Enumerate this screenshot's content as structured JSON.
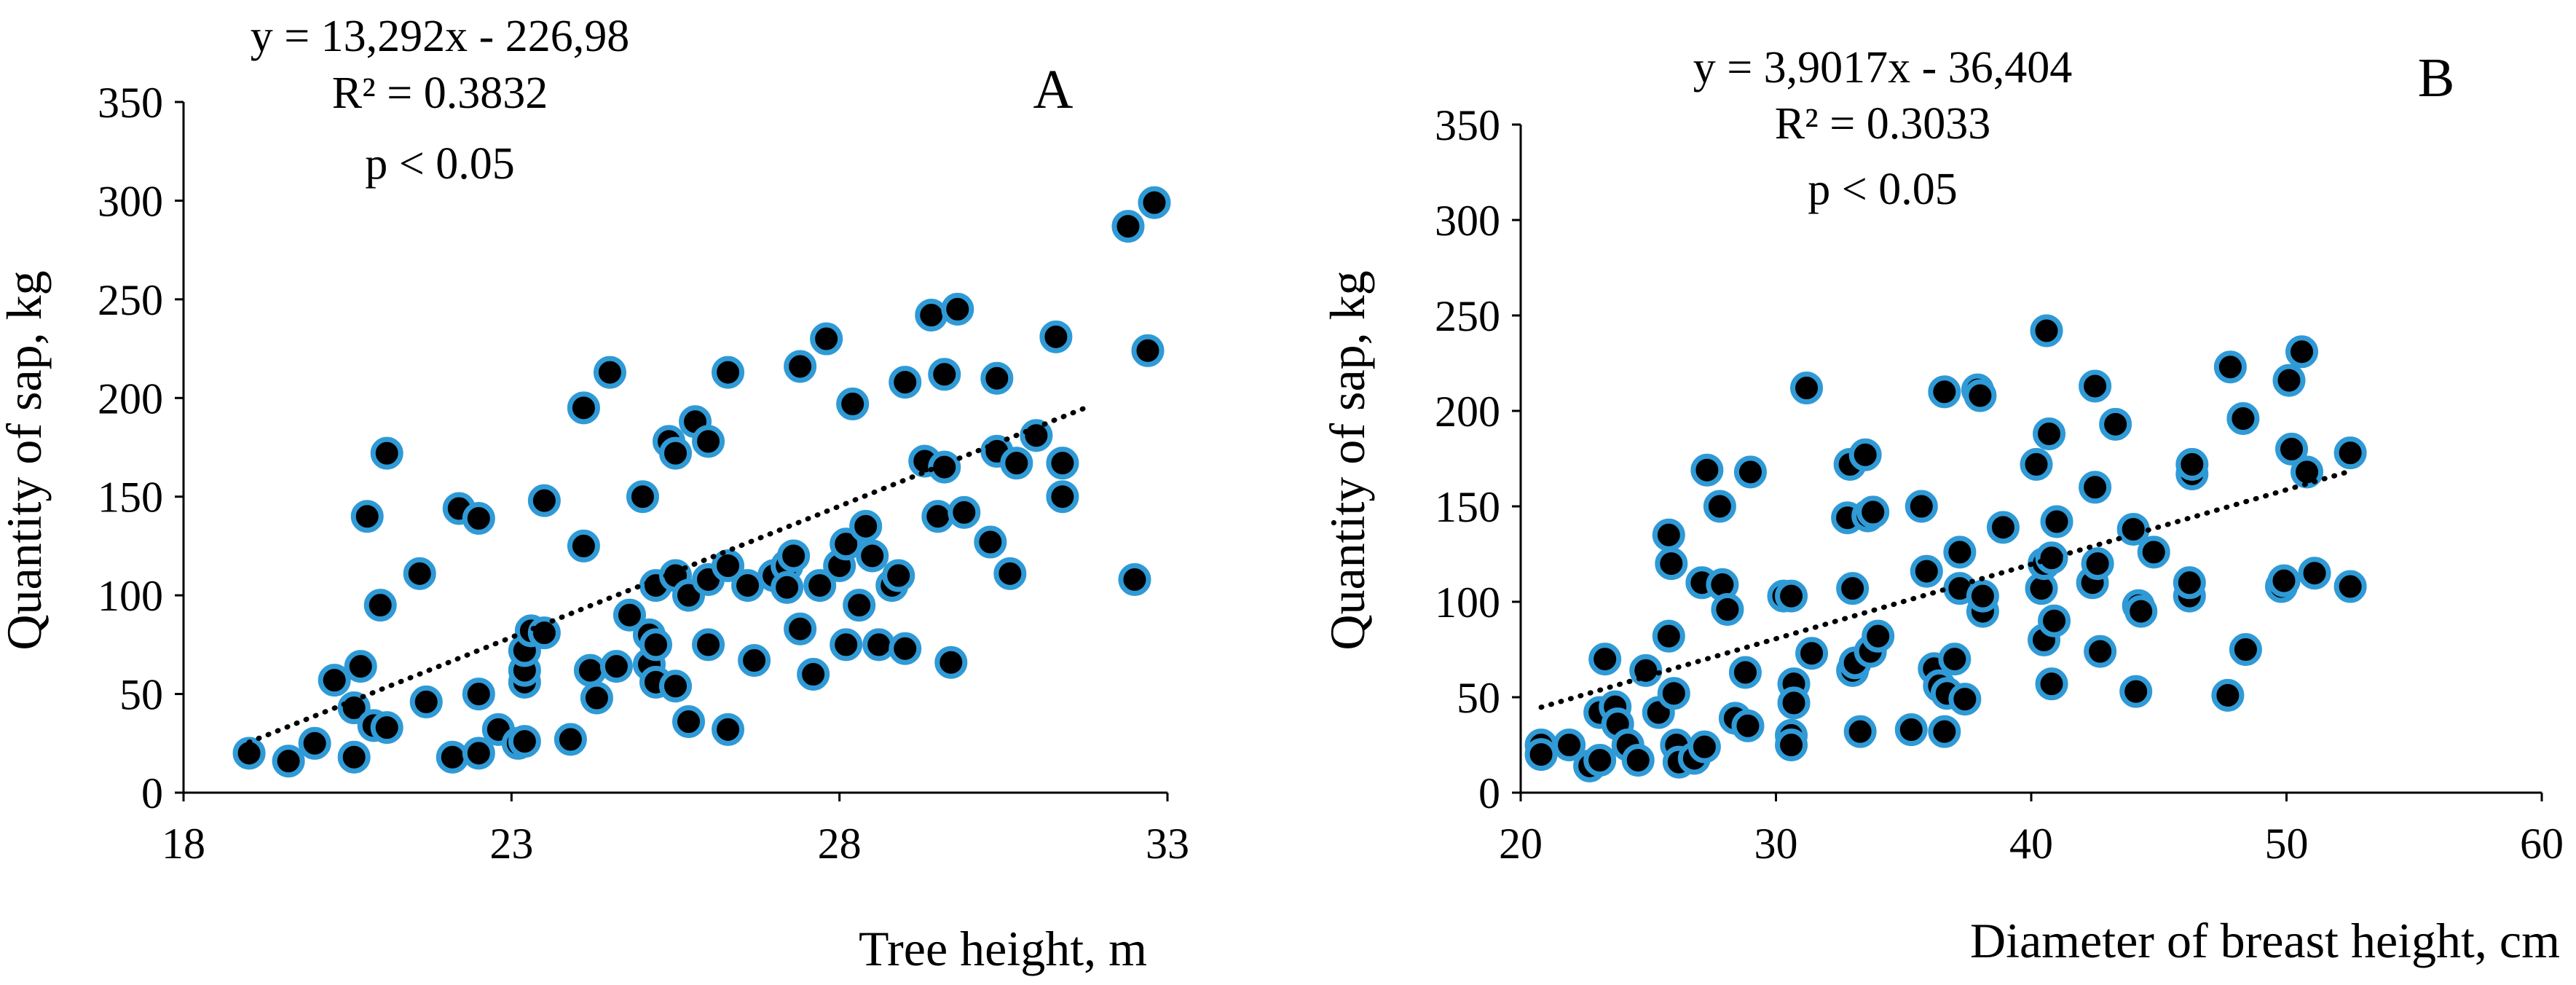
{
  "chart_data": [
    {
      "type": "scatter",
      "panel_label": "A",
      "xlabel": "Tree height, m",
      "ylabel": "Quantity of sap, kg",
      "xlim": [
        18,
        33
      ],
      "ylim": [
        0,
        350
      ],
      "xticks": [
        "18",
        "23",
        "28",
        "33"
      ],
      "yticks": [
        "0",
        "50",
        "100",
        "150",
        "200",
        "250",
        "300",
        "350"
      ],
      "annotation": {
        "equation": "y = 13,292x - 226,98",
        "r2": "R² = 0.3832",
        "p": "p < 0.05"
      },
      "trendline": {
        "slope": 13.292,
        "intercept": -226.98,
        "x_range": [
          19.0,
          31.8
        ]
      },
      "marker_colors": {
        "fill": "#000000",
        "edge": "#2f9ad6"
      },
      "points": [
        [
          19.0,
          20
        ],
        [
          19.6,
          16
        ],
        [
          20.0,
          25
        ],
        [
          20.3,
          57
        ],
        [
          20.6,
          18
        ],
        [
          20.6,
          43
        ],
        [
          20.7,
          64
        ],
        [
          20.8,
          140
        ],
        [
          20.9,
          34
        ],
        [
          21.0,
          95
        ],
        [
          21.1,
          172
        ],
        [
          21.1,
          33
        ],
        [
          21.6,
          111
        ],
        [
          21.7,
          46
        ],
        [
          22.1,
          18
        ],
        [
          22.2,
          144
        ],
        [
          22.5,
          20
        ],
        [
          22.5,
          50
        ],
        [
          22.5,
          139
        ],
        [
          22.8,
          32
        ],
        [
          23.1,
          25
        ],
        [
          23.2,
          26
        ],
        [
          23.2,
          56
        ],
        [
          23.2,
          62
        ],
        [
          23.2,
          72
        ],
        [
          23.3,
          82
        ],
        [
          23.5,
          81
        ],
        [
          23.5,
          148
        ],
        [
          23.9,
          27
        ],
        [
          24.1,
          125
        ],
        [
          24.1,
          195
        ],
        [
          24.2,
          62
        ],
        [
          24.3,
          48
        ],
        [
          24.5,
          213
        ],
        [
          24.6,
          64
        ],
        [
          24.8,
          90
        ],
        [
          25.0,
          150
        ],
        [
          25.1,
          65
        ],
        [
          25.1,
          80
        ],
        [
          25.2,
          56
        ],
        [
          25.2,
          75
        ],
        [
          25.2,
          105
        ],
        [
          25.4,
          178
        ],
        [
          25.5,
          54
        ],
        [
          25.5,
          110
        ],
        [
          25.5,
          172
        ],
        [
          25.7,
          36
        ],
        [
          25.7,
          100
        ],
        [
          25.8,
          188
        ],
        [
          26.0,
          75
        ],
        [
          26.0,
          108
        ],
        [
          26.0,
          178
        ],
        [
          26.3,
          32
        ],
        [
          26.3,
          115
        ],
        [
          26.3,
          213
        ],
        [
          26.6,
          105
        ],
        [
          26.7,
          67
        ],
        [
          27.0,
          110
        ],
        [
          27.2,
          115
        ],
        [
          27.2,
          104
        ],
        [
          27.3,
          120
        ],
        [
          27.4,
          83
        ],
        [
          27.4,
          216
        ],
        [
          27.6,
          60
        ],
        [
          27.7,
          105
        ],
        [
          27.8,
          230
        ],
        [
          28.0,
          115
        ],
        [
          28.1,
          126
        ],
        [
          28.1,
          75
        ],
        [
          28.2,
          197
        ],
        [
          28.3,
          95
        ],
        [
          28.4,
          135
        ],
        [
          28.5,
          120
        ],
        [
          28.6,
          75
        ],
        [
          28.8,
          105
        ],
        [
          28.9,
          110
        ],
        [
          29.0,
          73
        ],
        [
          29.0,
          208
        ],
        [
          29.3,
          168
        ],
        [
          29.4,
          242
        ],
        [
          29.5,
          140
        ],
        [
          29.6,
          212
        ],
        [
          29.6,
          165
        ],
        [
          29.7,
          66
        ],
        [
          29.8,
          245
        ],
        [
          29.9,
          142
        ],
        [
          30.3,
          127
        ],
        [
          30.4,
          173
        ],
        [
          30.4,
          210
        ],
        [
          30.6,
          111
        ],
        [
          30.7,
          167
        ],
        [
          31.0,
          181
        ],
        [
          31.3,
          231
        ],
        [
          31.4,
          150
        ],
        [
          31.4,
          167
        ],
        [
          32.4,
          287
        ],
        [
          32.5,
          108
        ],
        [
          32.7,
          224
        ],
        [
          32.8,
          299
        ]
      ]
    },
    {
      "type": "scatter",
      "panel_label": "B",
      "xlabel": "Diameter of breast height, cm",
      "ylabel": "Quantity of  sap, kg",
      "xlim": [
        20,
        60
      ],
      "ylim": [
        0,
        350
      ],
      "xticks": [
        "20",
        "30",
        "40",
        "50",
        "60"
      ],
      "yticks": [
        "0",
        "50",
        "100",
        "150",
        "200",
        "250",
        "300",
        "350"
      ],
      "annotation": {
        "equation": "y = 3,9017x - 36,404",
        "r2": "R² = 0.3033",
        "p": "p < 0.05"
      },
      "trendline": {
        "slope": 3.9017,
        "intercept": -36.404,
        "x_range": [
          20.8,
          52.5
        ]
      },
      "marker_colors": {
        "fill": "#000000",
        "edge": "#2f9ad6"
      },
      "points": [
        [
          20.8,
          25
        ],
        [
          20.8,
          20
        ],
        [
          21.9,
          25
        ],
        [
          22.7,
          14
        ],
        [
          23.1,
          17
        ],
        [
          23.1,
          42
        ],
        [
          23.3,
          70
        ],
        [
          23.7,
          45
        ],
        [
          23.8,
          36
        ],
        [
          24.2,
          25
        ],
        [
          24.6,
          17
        ],
        [
          24.9,
          64
        ],
        [
          25.4,
          42
        ],
        [
          25.8,
          135
        ],
        [
          25.8,
          82
        ],
        [
          25.9,
          120
        ],
        [
          26.0,
          52
        ],
        [
          26.1,
          25
        ],
        [
          26.2,
          16
        ],
        [
          26.8,
          18
        ],
        [
          27.1,
          110
        ],
        [
          27.2,
          24
        ],
        [
          27.3,
          169
        ],
        [
          27.8,
          150
        ],
        [
          27.9,
          109
        ],
        [
          28.1,
          96
        ],
        [
          28.4,
          39
        ],
        [
          28.8,
          63
        ],
        [
          28.9,
          35
        ],
        [
          29.0,
          168
        ],
        [
          30.3,
          103
        ],
        [
          30.6,
          103
        ],
        [
          30.6,
          30
        ],
        [
          30.6,
          25
        ],
        [
          30.7,
          57
        ],
        [
          30.7,
          47
        ],
        [
          31.2,
          212
        ],
        [
          31.4,
          73
        ],
        [
          32.8,
          144
        ],
        [
          32.9,
          172
        ],
        [
          33.0,
          64
        ],
        [
          33.0,
          107
        ],
        [
          33.1,
          68
        ],
        [
          33.3,
          32
        ],
        [
          33.5,
          177
        ],
        [
          33.6,
          145
        ],
        [
          33.7,
          74
        ],
        [
          33.8,
          147
        ],
        [
          34.0,
          82
        ],
        [
          35.3,
          33
        ],
        [
          35.7,
          150
        ],
        [
          35.9,
          116
        ],
        [
          36.2,
          65
        ],
        [
          36.4,
          56
        ],
        [
          36.6,
          32
        ],
        [
          36.6,
          210
        ],
        [
          36.7,
          52
        ],
        [
          37.0,
          70
        ],
        [
          37.2,
          126
        ],
        [
          37.2,
          107
        ],
        [
          37.4,
          49
        ],
        [
          37.9,
          211
        ],
        [
          38.0,
          208
        ],
        [
          38.1,
          95
        ],
        [
          38.1,
          103
        ],
        [
          38.9,
          139
        ],
        [
          40.2,
          172
        ],
        [
          40.4,
          107
        ],
        [
          40.5,
          120
        ],
        [
          40.5,
          80
        ],
        [
          40.6,
          242
        ],
        [
          40.7,
          188
        ],
        [
          40.8,
          123
        ],
        [
          40.8,
          57
        ],
        [
          40.9,
          90
        ],
        [
          41.0,
          142
        ],
        [
          42.4,
          110
        ],
        [
          42.5,
          160
        ],
        [
          42.5,
          213
        ],
        [
          42.6,
          120
        ],
        [
          42.7,
          74
        ],
        [
          43.3,
          193
        ],
        [
          44.0,
          138
        ],
        [
          44.1,
          53
        ],
        [
          44.2,
          98
        ],
        [
          44.3,
          95
        ],
        [
          44.8,
          126
        ],
        [
          46.2,
          103
        ],
        [
          46.2,
          110
        ],
        [
          46.3,
          167
        ],
        [
          46.3,
          172
        ],
        [
          47.7,
          51
        ],
        [
          47.8,
          223
        ],
        [
          48.3,
          196
        ],
        [
          48.4,
          75
        ],
        [
          49.8,
          108
        ],
        [
          49.9,
          111
        ],
        [
          50.1,
          216
        ],
        [
          50.2,
          180
        ],
        [
          50.6,
          231
        ],
        [
          50.8,
          168
        ],
        [
          51.1,
          115
        ],
        [
          52.5,
          108
        ],
        [
          52.5,
          178
        ]
      ]
    }
  ]
}
